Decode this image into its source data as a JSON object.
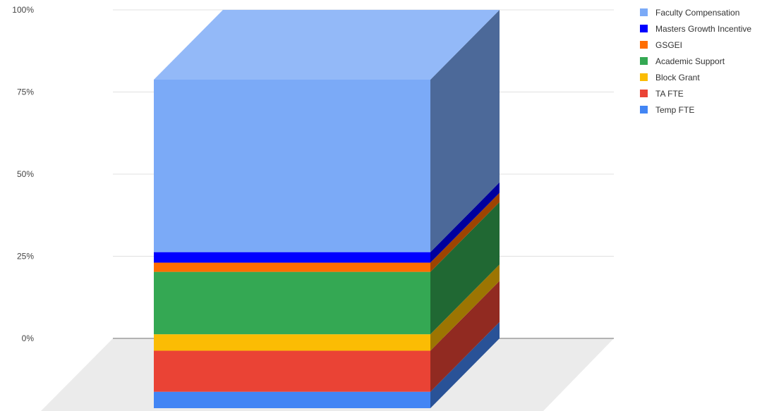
{
  "chart_data": {
    "type": "bar",
    "stacked": true,
    "percent_stacked": true,
    "three_d": true,
    "categories": [
      ""
    ],
    "y_ticks": [
      "0%",
      "25%",
      "50%",
      "75%",
      "100%"
    ],
    "ylim": [
      0,
      100
    ],
    "grid": true,
    "legend_position": "right",
    "series": [
      {
        "name": "Temp FTE",
        "values": [
          5
        ],
        "color": "#4285f4"
      },
      {
        "name": "TA FTE",
        "values": [
          12.5
        ],
        "color": "#ea4335"
      },
      {
        "name": "Block Grant",
        "values": [
          5
        ],
        "color": "#fbbc04"
      },
      {
        "name": "Academic Support",
        "values": [
          19
        ],
        "color": "#34a853"
      },
      {
        "name": "GSGEI",
        "values": [
          2.8
        ],
        "color": "#ff6d01"
      },
      {
        "name": "Masters Growth Incentive",
        "values": [
          3.2
        ],
        "color": "#0000ff"
      },
      {
        "name": "Faculty Compensation",
        "values": [
          52.5
        ],
        "color": "#7baaf7"
      }
    ]
  }
}
